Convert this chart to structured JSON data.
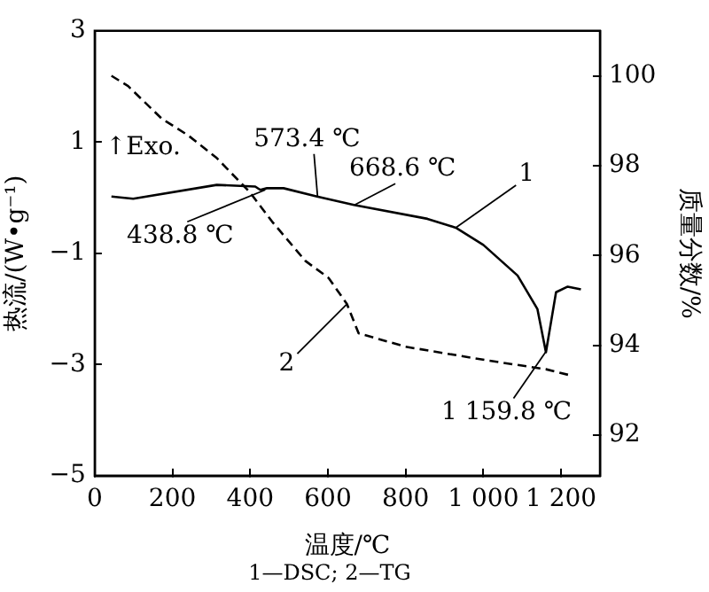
{
  "chart_data": {
    "type": "line",
    "xlabel": "温度/℃",
    "ylabel": "热流/(W•g⁻¹)",
    "y2label": "质量分数/%",
    "xlim": [
      0,
      1300
    ],
    "xticks": [
      0,
      200,
      400,
      600,
      800,
      {
        "value": 1000,
        "label": "1 000"
      },
      {
        "value": 1200,
        "label": "1 200"
      }
    ],
    "ylim": [
      -5,
      3
    ],
    "yticks": [
      {
        "value": -5,
        "label": "−5"
      },
      {
        "value": -3,
        "label": "−3"
      },
      {
        "value": -1,
        "label": "−1"
      },
      1,
      3
    ],
    "y2lim": [
      91.1,
      101
    ],
    "y2ticks": [
      92,
      94,
      96,
      98,
      100
    ],
    "grid": false,
    "legend": false,
    "marker": "none",
    "series": [
      {
        "name": "1",
        "color": "#000000",
        "line_style": "solid",
        "x": [
          43,
          99,
          314,
          413,
          426,
          443,
          486,
          572,
          667,
          856,
          929,
          1000,
          1088,
          1139,
          1161,
          1175,
          1187,
          1217,
          1251
        ],
        "values": [
          0.02,
          -0.02,
          0.23,
          0.2,
          0.14,
          0.17,
          0.17,
          0.02,
          -0.13,
          -0.38,
          -0.54,
          -0.85,
          -1.4,
          -2.0,
          -2.78,
          -2.2,
          -1.7,
          -1.6,
          -1.65
        ]
      },
      {
        "name": "2",
        "color": "#000000",
        "line_style": "dashed",
        "axis": "y2",
        "x": [
          43,
          86,
          172,
          241,
          314,
          400,
          456,
          542,
          602,
          649,
          679,
          800,
          1015,
          1161,
          1230
        ],
        "values": [
          100.0,
          99.77,
          99.05,
          98.67,
          98.17,
          97.4,
          96.76,
          95.88,
          95.5,
          94.92,
          94.27,
          93.97,
          93.66,
          93.47,
          93.32
        ]
      }
    ],
    "annotations": [
      "↑Exo.",
      {
        "text": "438.8 ℃",
        "x": 438.8,
        "y": 0.14
      },
      {
        "text": "573.4 ℃",
        "x": 573.4,
        "y": 0.02
      },
      {
        "text": "668.6 ℃",
        "x": 668.6,
        "y": -0.13
      },
      {
        "text": "1 159.8 ℃",
        "x": 1159.8,
        "y": -2.78
      },
      "1—DSC; 2—TG"
    ]
  }
}
